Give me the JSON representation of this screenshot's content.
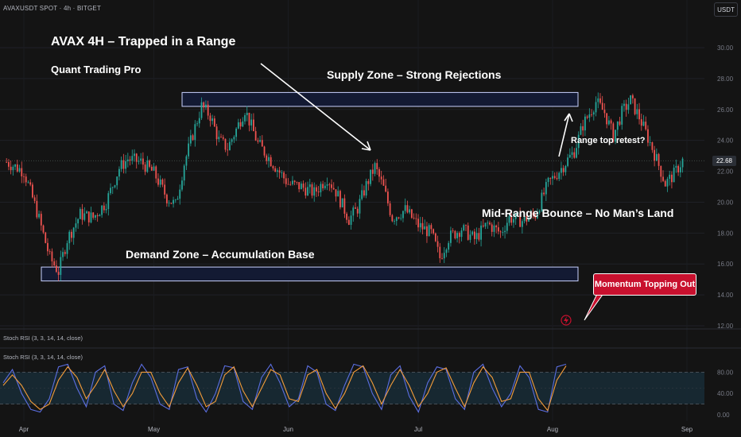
{
  "header": {
    "pair_title": "AVAXUSDT SPOT · 4h · BITGET",
    "currency_button": "USDT"
  },
  "annotations": {
    "title": "AVAX 4H – Trapped in a Range",
    "author": "Quant Trading Pro",
    "supply_label": "Supply Zone – Strong Rejections",
    "demand_label": "Demand Zone – Accumulation Base",
    "mid_label": "Mid-Range Bounce – No Man’s Land",
    "retest_label": "Range top retest?",
    "callout_label": "Momentum Topping Out"
  },
  "indicator": {
    "label": "Stoch RSI (3, 3, 14, 14, close)",
    "label_repeat": "Stoch RSI (3, 3, 14, 14, close)",
    "y_ticks": [
      "80.00",
      "40.00",
      "0.00"
    ]
  },
  "current_price": "22.68",
  "colors": {
    "background": "#141414",
    "up_candle": "#26a69a",
    "down_candle": "#ef5350",
    "zone_fill": "#131a33",
    "zone_border": "#c9d2ff",
    "stoch_k": "#5b6ee1",
    "stoch_d": "#f39c3a",
    "callout": "#c8102e"
  },
  "chart_data": {
    "type": "candlestick",
    "timeframe": "4h",
    "ylim": [
      12,
      31
    ],
    "y_ticks": [
      "30.00",
      "28.00",
      "26.00",
      "24.00",
      "22.00",
      "20.00",
      "18.00",
      "16.00",
      "14.00",
      "12.00"
    ],
    "x_ticks": [
      "Apr",
      "May",
      "Jun",
      "Jul",
      "Aug",
      "Sep"
    ],
    "supply_zone": [
      26.2,
      27.1
    ],
    "demand_zone": [
      14.9,
      15.8
    ],
    "price_path": [
      [
        "Mar 28",
        22.6
      ],
      [
        "Apr 1",
        22.0
      ],
      [
        "Apr 4",
        19.4
      ],
      [
        "Apr 7",
        16.4
      ],
      [
        "Apr 9",
        15.5
      ],
      [
        "Apr 11",
        17.6
      ],
      [
        "Apr 14",
        19.2
      ],
      [
        "Apr 17",
        19.0
      ],
      [
        "Apr 20",
        20.0
      ],
      [
        "Apr 23",
        22.2
      ],
      [
        "Apr 25",
        22.8
      ],
      [
        "Apr 28",
        22.6
      ],
      [
        "May 1",
        21.9
      ],
      [
        "May 4",
        20.3
      ],
      [
        "May 6",
        19.8
      ],
      [
        "May 8",
        22.5
      ],
      [
        "May 10",
        24.4
      ],
      [
        "May 12",
        26.2
      ],
      [
        "May 14",
        25.6
      ],
      [
        "May 16",
        24.0
      ],
      [
        "May 18",
        23.5
      ],
      [
        "May 20",
        24.7
      ],
      [
        "May 22",
        26.0
      ],
      [
        "May 25",
        23.8
      ],
      [
        "May 28",
        22.7
      ],
      [
        "Jun 1",
        21.2
      ],
      [
        "Jun 4",
        21.0
      ],
      [
        "Jun 7",
        20.6
      ],
      [
        "Jun 10",
        21.6
      ],
      [
        "Jun 12",
        20.7
      ],
      [
        "Jun 15",
        18.9
      ],
      [
        "Jun 17",
        19.6
      ],
      [
        "Jun 19",
        21.1
      ],
      [
        "Jun 21",
        22.3
      ],
      [
        "Jun 23",
        20.9
      ],
      [
        "Jun 25",
        19.0
      ],
      [
        "Jun 28",
        19.5
      ],
      [
        "Jul 1",
        18.5
      ],
      [
        "Jul 4",
        18.0
      ],
      [
        "Jul 6",
        16.4
      ],
      [
        "Jul 8",
        17.7
      ],
      [
        "Jul 11",
        18.3
      ],
      [
        "Jul 14",
        17.6
      ],
      [
        "Jul 17",
        18.6
      ],
      [
        "Jul 20",
        18.0
      ],
      [
        "Jul 22",
        19.0
      ],
      [
        "Jul 25",
        18.8
      ],
      [
        "Jul 28",
        19.2
      ],
      [
        "Jul 31",
        21.2
      ],
      [
        "Aug 3",
        22.2
      ],
      [
        "Aug 6",
        23.3
      ],
      [
        "Aug 8",
        25.0
      ],
      [
        "Aug 11",
        26.5
      ],
      [
        "Aug 13",
        25.8
      ],
      [
        "Aug 15",
        24.3
      ],
      [
        "Aug 17",
        25.8
      ],
      [
        "Aug 19",
        26.6
      ],
      [
        "Aug 21",
        25.5
      ],
      [
        "Aug 24",
        23.5
      ],
      [
        "Aug 26",
        22.0
      ],
      [
        "Aug 27",
        21.2
      ],
      [
        "Aug 29",
        21.8
      ],
      [
        "Aug 31",
        22.7
      ]
    ],
    "stoch_rsi": {
      "ylim": [
        0,
        100
      ],
      "bands": [
        80,
        20
      ],
      "series": [
        {
          "values": [
            60,
            85,
            40,
            10,
            5,
            30,
            90,
            95,
            50,
            15,
            80,
            92,
            20,
            8,
            60,
            95,
            70,
            20,
            10,
            85,
            90,
            30,
            5,
            40,
            92,
            88,
            25,
            10,
            70,
            95,
            60,
            15,
            30,
            92,
            80,
            20,
            8,
            55,
            95,
            90,
            40,
            10,
            75,
            92,
            35,
            5,
            60,
            90,
            85,
            30,
            10,
            80,
            95,
            50,
            15,
            40,
            92,
            70,
            10,
            5,
            90,
            95
          ]
        },
        {
          "values": [
            55,
            75,
            55,
            25,
            10,
            20,
            65,
            90,
            70,
            30,
            55,
            85,
            45,
            15,
            40,
            80,
            80,
            40,
            15,
            60,
            88,
            55,
            15,
            25,
            75,
            90,
            45,
            15,
            50,
            85,
            75,
            30,
            25,
            75,
            85,
            40,
            12,
            40,
            80,
            92,
            60,
            20,
            55,
            85,
            55,
            15,
            40,
            80,
            88,
            50,
            15,
            60,
            90,
            70,
            25,
            30,
            80,
            80,
            30,
            8,
            65,
            92
          ]
        }
      ]
    }
  }
}
